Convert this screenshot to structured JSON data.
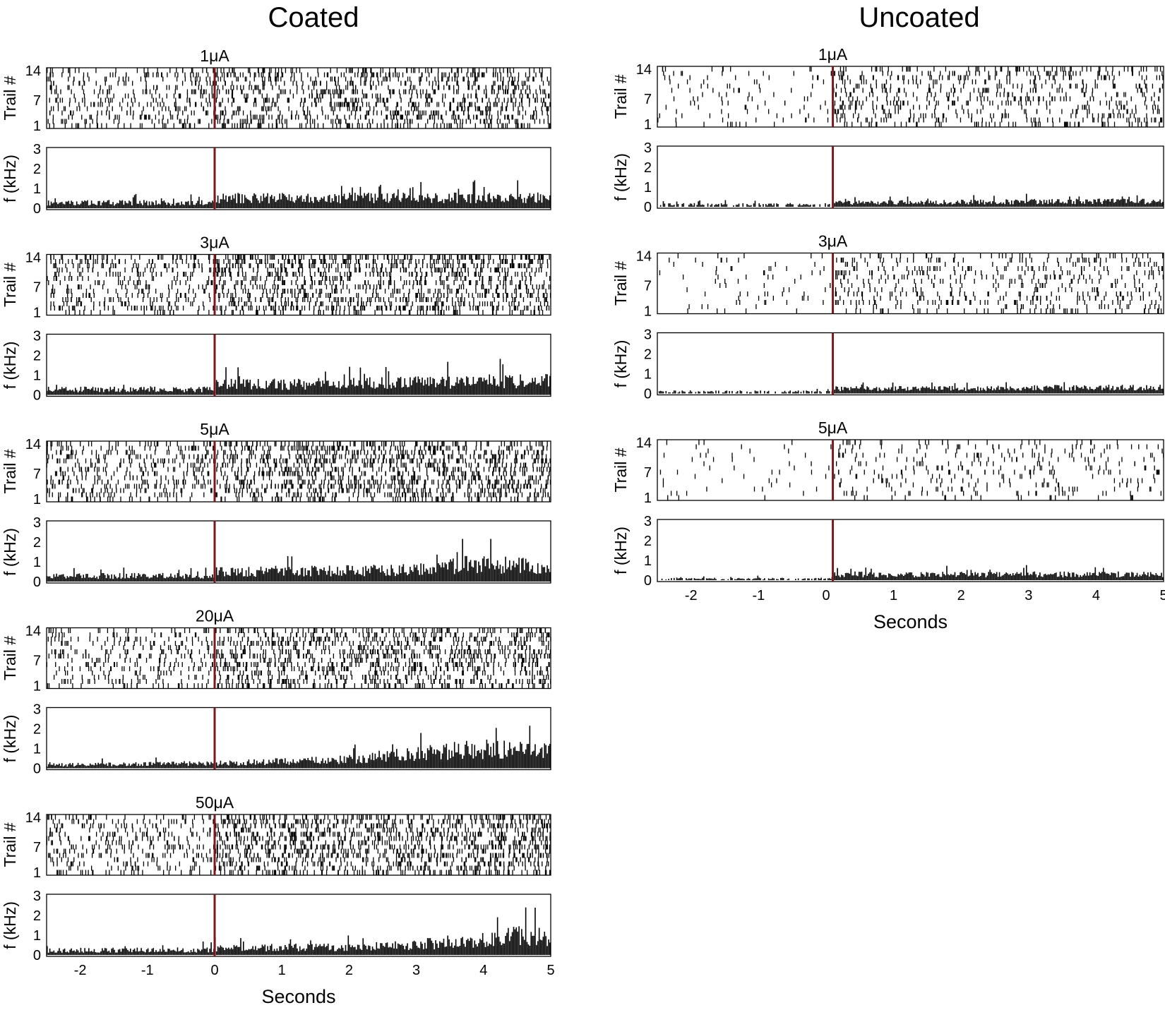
{
  "colors": {
    "stimulus_line": "#7a1a1a",
    "ink": "#000000",
    "frame": "#000000"
  },
  "figure": {
    "columns": [
      {
        "title": "Coated"
      },
      {
        "title": "Uncoated"
      }
    ]
  },
  "chart_data": [
    {
      "type": "raster+histogram",
      "column": "Coated",
      "xlabel": "Seconds",
      "xlim": [
        -2.5,
        5
      ],
      "x_ticks": [
        -2,
        -1,
        0,
        1,
        2,
        3,
        4,
        5
      ],
      "stimulus_onset": 0,
      "raster": {
        "ylabel": "Trail #",
        "ylim": [
          1,
          14
        ],
        "y_ticks": [
          1,
          7,
          14
        ]
      },
      "histogram": {
        "ylabel": "f (kHz)",
        "ylim": [
          0,
          3
        ],
        "y_ticks": [
          0,
          1,
          2,
          3
        ]
      },
      "conditions": [
        {
          "name": "1μA",
          "raster_rate_pre": 2.6,
          "raster_rate_post": 4.0,
          "hist_profile": [
            [
              -2.5,
              0.32
            ],
            [
              -0.02,
              0.32
            ],
            [
              0.0,
              0.62
            ],
            [
              1.0,
              0.6
            ],
            [
              2.5,
              0.62
            ],
            [
              4.0,
              0.62
            ],
            [
              5.0,
              0.62
            ]
          ]
        },
        {
          "name": "3μA",
          "raster_rate_pre": 3.2,
          "raster_rate_post": 5.2,
          "hist_profile": [
            [
              -2.5,
              0.32
            ],
            [
              -0.02,
              0.34
            ],
            [
              0.0,
              0.62
            ],
            [
              1.0,
              0.64
            ],
            [
              2.5,
              0.7
            ],
            [
              4.0,
              0.8
            ],
            [
              5.0,
              0.82
            ]
          ]
        },
        {
          "name": "5μA",
          "raster_rate_pre": 3.2,
          "raster_rate_post": 5.2,
          "hist_profile": [
            [
              -2.5,
              0.33
            ],
            [
              -0.02,
              0.34
            ],
            [
              0.0,
              0.62
            ],
            [
              1.5,
              0.62
            ],
            [
              3.0,
              0.7
            ],
            [
              3.8,
              1.05
            ],
            [
              4.6,
              0.95
            ],
            [
              5.0,
              0.6
            ]
          ]
        },
        {
          "name": "20μA",
          "raster_rate_pre": 2.4,
          "raster_rate_post": 4.6,
          "hist_profile": [
            [
              -2.5,
              0.2
            ],
            [
              -1.0,
              0.25
            ],
            [
              0.0,
              0.3
            ],
            [
              1.0,
              0.4
            ],
            [
              2.0,
              0.52
            ],
            [
              3.0,
              0.9
            ],
            [
              4.0,
              1.15
            ],
            [
              5.0,
              1.05
            ]
          ]
        },
        {
          "name": "50μA",
          "raster_rate_pre": 2.4,
          "raster_rate_post": 4.8,
          "hist_profile": [
            [
              -2.5,
              0.28
            ],
            [
              -0.02,
              0.3
            ],
            [
              0.0,
              0.4
            ],
            [
              2.0,
              0.48
            ],
            [
              3.0,
              0.62
            ],
            [
              4.0,
              0.95
            ],
            [
              4.5,
              1.15
            ],
            [
              5.0,
              1.05
            ]
          ]
        }
      ]
    },
    {
      "type": "raster+histogram",
      "column": "Uncoated",
      "xlabel": "Seconds",
      "xlim": [
        -2.5,
        5
      ],
      "x_ticks": [
        -2,
        -1,
        0,
        1,
        2,
        3,
        4,
        5
      ],
      "stimulus_onset": 0.1,
      "raster": {
        "ylabel": "Trail #",
        "ylim": [
          1,
          14
        ],
        "y_ticks": [
          1,
          7,
          14
        ]
      },
      "histogram": {
        "ylabel": "f (kHz)",
        "ylim": [
          0,
          3
        ],
        "y_ticks": [
          0,
          1,
          2,
          3
        ]
      },
      "conditions": [
        {
          "name": "1μA",
          "raster_rate_pre": 0.7,
          "raster_rate_post": 2.4,
          "hist_profile": [
            [
              -2.5,
              0.15
            ],
            [
              0.08,
              0.15
            ],
            [
              0.1,
              0.24
            ],
            [
              2.0,
              0.28
            ],
            [
              4.0,
              0.32
            ],
            [
              5.0,
              0.34
            ]
          ]
        },
        {
          "name": "3μA",
          "raster_rate_pre": 0.5,
          "raster_rate_post": 2.0,
          "hist_profile": [
            [
              -2.5,
              0.12
            ],
            [
              0.08,
              0.12
            ],
            [
              0.1,
              0.28
            ],
            [
              2.0,
              0.3
            ],
            [
              3.5,
              0.34
            ],
            [
              5.0,
              0.36
            ]
          ]
        },
        {
          "name": "5μA",
          "raster_rate_pre": 0.4,
          "raster_rate_post": 1.4,
          "hist_profile": [
            [
              -2.5,
              0.1
            ],
            [
              0.08,
              0.1
            ],
            [
              0.1,
              0.34
            ],
            [
              2.0,
              0.34
            ],
            [
              5.0,
              0.34
            ]
          ]
        }
      ]
    }
  ]
}
